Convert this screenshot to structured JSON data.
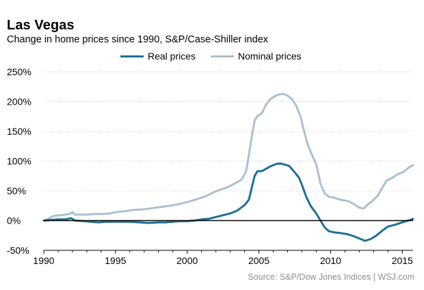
{
  "title": "Las Vegas",
  "subtitle": "Change in home prices since 1990, S&P/Case-Shiller index",
  "source": "Source: S&P/Dow Jones Indices  |  WSJ.com",
  "chart_data": {
    "type": "line",
    "xlim": [
      1990,
      2015.75
    ],
    "ylim": [
      -50,
      250
    ],
    "x_ticks": [
      1990,
      1995,
      2000,
      2005,
      2010,
      2015
    ],
    "x_tick_labels": [
      "1990",
      "1995",
      "2000",
      "2005",
      "2010",
      "2015"
    ],
    "y_ticks": [
      -50,
      0,
      50,
      100,
      150,
      200,
      250
    ],
    "y_tick_labels": [
      "-50%",
      "0%",
      "50%",
      "100%",
      "150%",
      "200%",
      "250%"
    ],
    "grid": "horizontal",
    "legend_position": "top",
    "series": [
      {
        "name": "Real prices",
        "color": "#1f6f93",
        "points": [
          [
            1990.0,
            0
          ],
          [
            1990.5,
            1
          ],
          [
            1991.0,
            2
          ],
          [
            1991.5,
            2
          ],
          [
            1991.9,
            4
          ],
          [
            1992.2,
            0
          ],
          [
            1992.8,
            -1
          ],
          [
            1993.3,
            -2
          ],
          [
            1993.8,
            -3
          ],
          [
            1994.3,
            -2
          ],
          [
            1995.0,
            -2
          ],
          [
            1996.0,
            -2
          ],
          [
            1996.7,
            -3
          ],
          [
            1997.3,
            -4
          ],
          [
            1998.0,
            -3
          ],
          [
            1998.5,
            -3
          ],
          [
            1999.0,
            -2
          ],
          [
            1999.5,
            -1
          ],
          [
            2000.0,
            -1
          ],
          [
            2000.5,
            0
          ],
          [
            2001.0,
            2
          ],
          [
            2001.5,
            3
          ],
          [
            2002.0,
            6
          ],
          [
            2002.5,
            9
          ],
          [
            2003.0,
            12
          ],
          [
            2003.5,
            17
          ],
          [
            2004.0,
            26
          ],
          [
            2004.3,
            35
          ],
          [
            2004.5,
            55
          ],
          [
            2004.7,
            75
          ],
          [
            2004.9,
            83
          ],
          [
            2005.2,
            83
          ],
          [
            2005.5,
            87
          ],
          [
            2005.8,
            91
          ],
          [
            2006.2,
            95
          ],
          [
            2006.5,
            96
          ],
          [
            2006.8,
            94
          ],
          [
            2007.1,
            92
          ],
          [
            2007.4,
            84
          ],
          [
            2007.8,
            72
          ],
          [
            2008.0,
            60
          ],
          [
            2008.3,
            40
          ],
          [
            2008.6,
            25
          ],
          [
            2009.0,
            12
          ],
          [
            2009.3,
            0
          ],
          [
            2009.6,
            -12
          ],
          [
            2009.9,
            -18
          ],
          [
            2010.3,
            -20
          ],
          [
            2010.7,
            -21
          ],
          [
            2011.2,
            -23
          ],
          [
            2011.7,
            -27
          ],
          [
            2012.1,
            -31
          ],
          [
            2012.4,
            -34
          ],
          [
            2012.8,
            -31
          ],
          [
            2013.2,
            -25
          ],
          [
            2013.6,
            -17
          ],
          [
            2014.0,
            -10
          ],
          [
            2014.5,
            -7
          ],
          [
            2015.0,
            -3
          ],
          [
            2015.4,
            0
          ],
          [
            2015.75,
            3
          ]
        ]
      },
      {
        "name": "Nominal prices",
        "color": "#a9c0d3",
        "points": [
          [
            1990.0,
            0
          ],
          [
            1990.3,
            3
          ],
          [
            1990.7,
            8
          ],
          [
            1991.2,
            9
          ],
          [
            1991.8,
            11
          ],
          [
            1992.0,
            14
          ],
          [
            1992.2,
            10
          ],
          [
            1993.0,
            10
          ],
          [
            1993.5,
            11
          ],
          [
            1994.0,
            11
          ],
          [
            1994.6,
            12
          ],
          [
            1995.0,
            14
          ],
          [
            1995.7,
            16
          ],
          [
            1996.3,
            18
          ],
          [
            1997.0,
            19
          ],
          [
            1997.6,
            21
          ],
          [
            1998.2,
            23
          ],
          [
            1998.8,
            25
          ],
          [
            1999.3,
            27
          ],
          [
            1999.8,
            30
          ],
          [
            2000.3,
            33
          ],
          [
            2000.8,
            37
          ],
          [
            2001.3,
            41
          ],
          [
            2001.8,
            47
          ],
          [
            2002.3,
            52
          ],
          [
            2002.8,
            56
          ],
          [
            2003.3,
            62
          ],
          [
            2003.8,
            69
          ],
          [
            2004.1,
            82
          ],
          [
            2004.3,
            110
          ],
          [
            2004.5,
            140
          ],
          [
            2004.7,
            168
          ],
          [
            2004.9,
            176
          ],
          [
            2005.2,
            180
          ],
          [
            2005.5,
            195
          ],
          [
            2005.8,
            204
          ],
          [
            2006.1,
            209
          ],
          [
            2006.4,
            212
          ],
          [
            2006.7,
            213
          ],
          [
            2007.0,
            210
          ],
          [
            2007.3,
            204
          ],
          [
            2007.6,
            193
          ],
          [
            2007.9,
            175
          ],
          [
            2008.1,
            155
          ],
          [
            2008.4,
            128
          ],
          [
            2008.7,
            110
          ],
          [
            2009.0,
            95
          ],
          [
            2009.3,
            62
          ],
          [
            2009.6,
            45
          ],
          [
            2009.9,
            40
          ],
          [
            2010.3,
            38
          ],
          [
            2010.7,
            35
          ],
          [
            2011.2,
            33
          ],
          [
            2011.6,
            28
          ],
          [
            2012.0,
            22
          ],
          [
            2012.3,
            20
          ],
          [
            2012.6,
            27
          ],
          [
            2013.0,
            35
          ],
          [
            2013.3,
            42
          ],
          [
            2013.6,
            55
          ],
          [
            2013.9,
            67
          ],
          [
            2014.3,
            72
          ],
          [
            2014.7,
            78
          ],
          [
            2015.1,
            82
          ],
          [
            2015.5,
            90
          ],
          [
            2015.75,
            93
          ]
        ]
      }
    ]
  }
}
